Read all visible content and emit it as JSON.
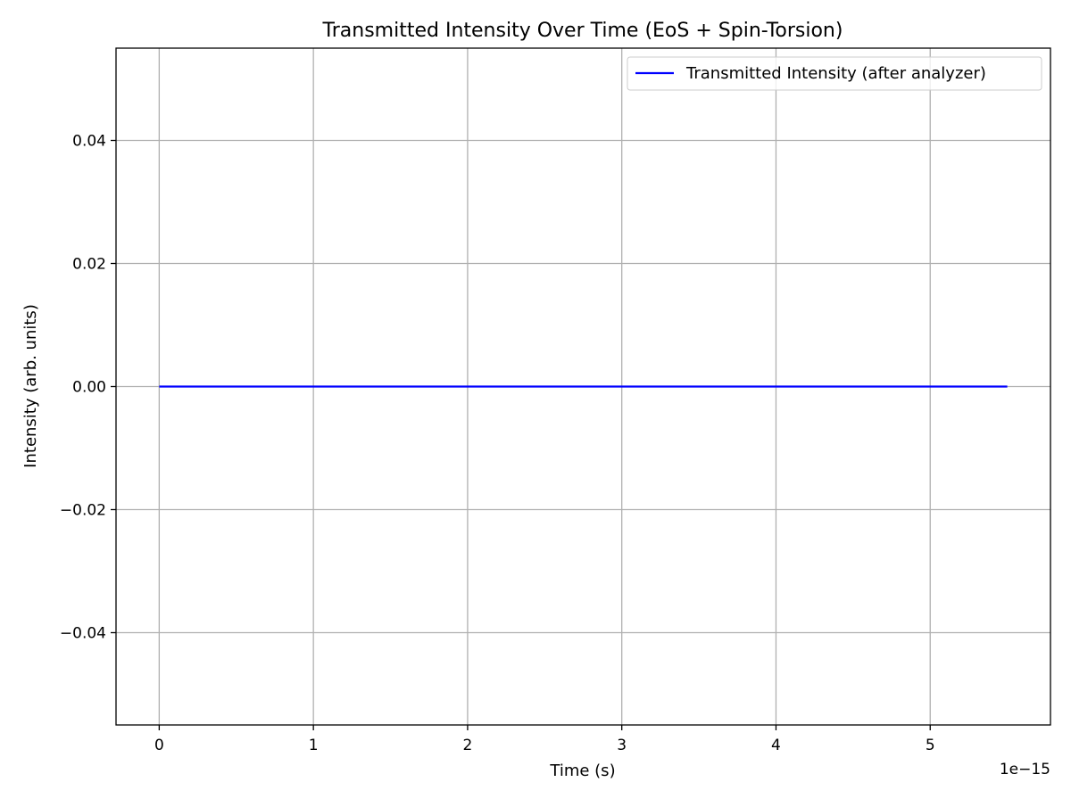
{
  "chart_data": {
    "type": "line",
    "title": "Transmitted Intensity Over Time (EoS + Spin-Torsion)",
    "xlabel": "Time (s)",
    "ylabel": "Intensity (arb. units)",
    "x_offset_label": "1e−15",
    "xlim": [
      -0.28,
      5.78
    ],
    "ylim": [
      -0.055,
      0.055
    ],
    "xticks": [
      0,
      1,
      2,
      3,
      4,
      5
    ],
    "xtick_labels": [
      "0",
      "1",
      "2",
      "3",
      "4",
      "5"
    ],
    "yticks": [
      -0.04,
      -0.02,
      0.0,
      0.02,
      0.04
    ],
    "ytick_labels": [
      "−0.04",
      "−0.02",
      "0.00",
      "0.02",
      "0.04"
    ],
    "grid": true,
    "legend_position": "top-right",
    "series": [
      {
        "name": "Transmitted Intensity (after analyzer)",
        "color": "#0000ff",
        "x": [
          0.0,
          0.5,
          1.0,
          1.5,
          2.0,
          2.5,
          3.0,
          3.5,
          4.0,
          4.5,
          5.0,
          5.5
        ],
        "y": [
          0,
          0,
          0,
          0,
          0,
          0,
          0,
          0,
          0,
          0,
          0,
          0
        ]
      }
    ]
  }
}
